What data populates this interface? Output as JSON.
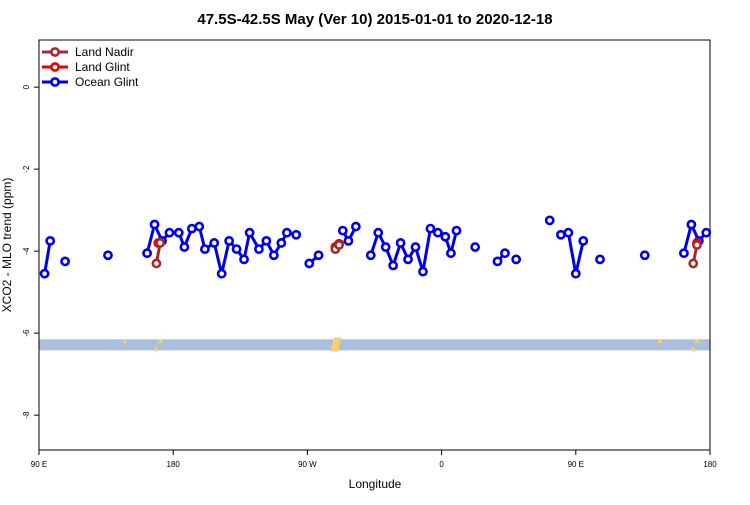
{
  "chart_data": {
    "type": "line",
    "title": "47.5S-42.5S May (Ver 10)   2015-01-01 to 2020-12-18",
    "xlabel": "Longitude",
    "ylabel": "XCO2 - MLO trend (ppm)",
    "xlim": [
      0,
      360
    ],
    "ylim": [
      -8.85,
      1.15
    ],
    "x_ticks": [
      {
        "value": 0,
        "label": "90 E"
      },
      {
        "value": 72,
        "label": "180"
      },
      {
        "value": 144,
        "label": "90 W"
      },
      {
        "value": 216,
        "label": "0"
      },
      {
        "value": 288,
        "label": "90 E"
      },
      {
        "value": 360,
        "label": "180"
      }
    ],
    "y_ticks": [
      {
        "value": 0,
        "label": "0"
      },
      {
        "value": -2,
        "label": "-2"
      },
      {
        "value": -4,
        "label": "-4"
      },
      {
        "value": -6,
        "label": "-6"
      },
      {
        "value": -8,
        "label": "-8"
      }
    ],
    "legend": {
      "placement": "top-left",
      "entries": [
        {
          "name": "Land Nadir",
          "color": "#a52a2a"
        },
        {
          "name": "Land Glint",
          "color": "#e60000"
        },
        {
          "name": "Ocean Glint",
          "color": "#0000e6"
        }
      ]
    },
    "series": [
      {
        "name": "Ocean Glint",
        "color": "#0000e6",
        "segments": [
          [
            [
              3,
              -4.55
            ],
            [
              6,
              -3.75
            ]
          ],
          [
            [
              14,
              -4.25
            ]
          ],
          [
            [
              37,
              -4.1
            ]
          ],
          [
            [
              58,
              -4.05
            ],
            [
              62,
              -3.35
            ],
            [
              66,
              -3.75
            ],
            [
              70,
              -3.55
            ],
            [
              75,
              -3.55
            ],
            [
              78,
              -3.9
            ],
            [
              82,
              -3.45
            ],
            [
              86,
              -3.4
            ],
            [
              89,
              -3.95
            ],
            [
              94,
              -3.8
            ],
            [
              98,
              -4.55
            ],
            [
              102,
              -3.75
            ],
            [
              106,
              -3.95
            ],
            [
              110,
              -4.2
            ],
            [
              113,
              -3.55
            ],
            [
              118,
              -3.95
            ],
            [
              122,
              -3.75
            ],
            [
              126,
              -4.1
            ],
            [
              130,
              -3.8
            ],
            [
              133,
              -3.55
            ],
            [
              138,
              -3.6
            ]
          ],
          [
            [
              145,
              -4.3
            ],
            [
              150,
              -4.1
            ]
          ],
          [
            [
              163,
              -3.5
            ],
            [
              166,
              -3.75
            ],
            [
              170,
              -3.4
            ]
          ],
          [
            [
              178,
              -4.1
            ],
            [
              182,
              -3.55
            ],
            [
              186,
              -3.9
            ],
            [
              190,
              -4.35
            ],
            [
              194,
              -3.8
            ],
            [
              198,
              -4.2
            ],
            [
              202,
              -3.9
            ],
            [
              206,
              -4.5
            ],
            [
              210,
              -3.45
            ],
            [
              214,
              -3.55
            ],
            [
              218,
              -3.65
            ],
            [
              221,
              -4.05
            ],
            [
              224,
              -3.5
            ]
          ],
          [
            [
              234,
              -3.9
            ]
          ],
          [
            [
              246,
              -4.25
            ],
            [
              250,
              -4.05
            ]
          ],
          [
            [
              256,
              -4.2
            ]
          ],
          [
            [
              274,
              -3.25
            ]
          ],
          [
            [
              280,
              -3.6
            ],
            [
              284,
              -3.55
            ],
            [
              288,
              -4.55
            ],
            [
              292,
              -3.75
            ]
          ],
          [
            [
              301,
              -4.2
            ]
          ],
          [
            [
              325,
              -4.1
            ]
          ],
          [
            [
              346,
              -4.05
            ],
            [
              350,
              -3.35
            ],
            [
              354,
              -3.75
            ],
            [
              358,
              -3.55
            ]
          ]
        ]
      },
      {
        "name": "Land Glint",
        "color": "#e60000",
        "segments": [
          [
            [
              64,
              -3.8
            ]
          ],
          [
            [
              159,
              -3.9
            ],
            [
              161,
              -3.82
            ]
          ],
          [
            [
              353,
              -3.8
            ]
          ]
        ]
      },
      {
        "name": "Land Nadir",
        "color": "#a52a2a",
        "segments": [
          [
            [
              63,
              -4.3
            ],
            [
              65,
              -3.8
            ]
          ],
          [
            [
              159,
              -3.95
            ],
            [
              161,
              -3.85
            ]
          ],
          [
            [
              351,
              -4.3
            ],
            [
              353,
              -3.85
            ]
          ]
        ]
      }
    ],
    "bands": [
      {
        "name": "latitude band",
        "color": "#a9bfdd",
        "ymin": -6.42,
        "ymax": -6.15
      }
    ],
    "land_marks": {
      "color": "#f7d06a",
      "items": [
        {
          "x": 46,
          "y": -6.2,
          "kind": "dot"
        },
        {
          "x": 63,
          "y": -6.4,
          "kind": "dot"
        },
        {
          "x": 65,
          "y": -6.2,
          "kind": "dot"
        },
        {
          "x": 160,
          "y": -6.3,
          "kind": "block"
        },
        {
          "x": 333,
          "y": -6.2,
          "kind": "dot"
        },
        {
          "x": 351,
          "y": -6.4,
          "kind": "dot"
        },
        {
          "x": 353,
          "y": -6.2,
          "kind": "dot"
        }
      ]
    }
  }
}
